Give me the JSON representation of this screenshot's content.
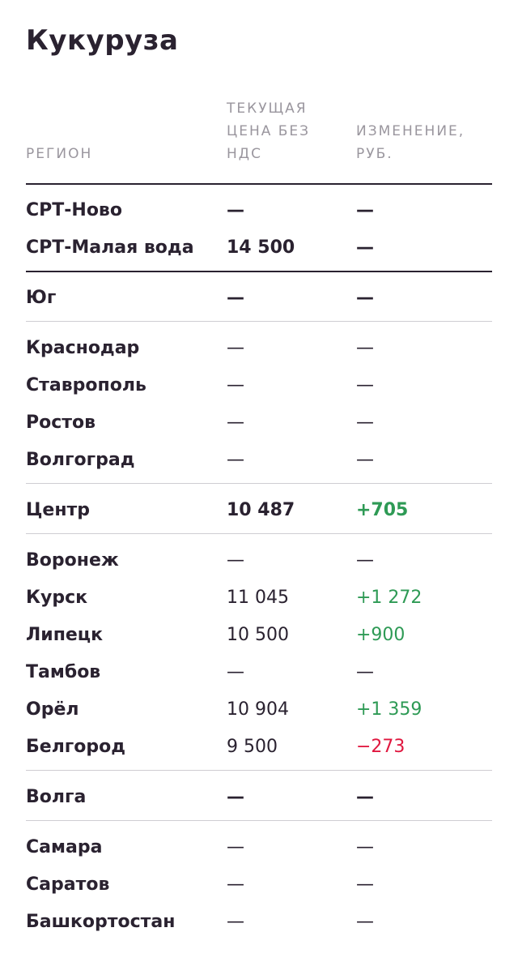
{
  "title": "Кукуруза",
  "columns": {
    "region": "РЕГИОН",
    "price": "ТЕКУЩАЯ ЦЕНА БЕЗ НДС",
    "change": "ИЗМЕНЕНИЕ, РУБ."
  },
  "colors": {
    "positive": "#2e9a55",
    "negative": "#e0173f",
    "text": "#2a2230",
    "header": "#9a969e"
  },
  "rows": [
    {
      "region": "СРТ-Ново",
      "price": "—",
      "change": "—",
      "bold": true
    },
    {
      "region": "СРТ-Малая вода",
      "price": "14 500",
      "change": "—",
      "bold": true
    },
    {
      "region": "Юг",
      "price": "—",
      "change": "—",
      "bold": true
    },
    {
      "region": "Краснодар",
      "price": "—",
      "change": "—",
      "bold": false
    },
    {
      "region": "Ставрополь",
      "price": "—",
      "change": "—",
      "bold": false
    },
    {
      "region": "Ростов",
      "price": "—",
      "change": "—",
      "bold": false
    },
    {
      "region": "Волгоград",
      "price": "—",
      "change": "—",
      "bold": false
    },
    {
      "region": "Центр",
      "price": "10 487",
      "change": "+705",
      "bold": true
    },
    {
      "region": "Воронеж",
      "price": "—",
      "change": "—",
      "bold": false
    },
    {
      "region": "Курск",
      "price": "11 045",
      "change": "+1 272",
      "bold": false
    },
    {
      "region": "Липецк",
      "price": "10 500",
      "change": "+900",
      "bold": false
    },
    {
      "region": "Тамбов",
      "price": "—",
      "change": "—",
      "bold": false
    },
    {
      "region": "Орёл",
      "price": "10 904",
      "change": "+1 359",
      "bold": false
    },
    {
      "region": "Белгород",
      "price": "9 500",
      "change": "−273",
      "bold": false
    },
    {
      "region": "Волга",
      "price": "—",
      "change": "—",
      "bold": true
    },
    {
      "region": "Самара",
      "price": "—",
      "change": "—",
      "bold": false
    },
    {
      "region": "Саратов",
      "price": "—",
      "change": "—",
      "bold": false
    },
    {
      "region": "Башкортостан",
      "price": "—",
      "change": "—",
      "bold": false
    }
  ]
}
